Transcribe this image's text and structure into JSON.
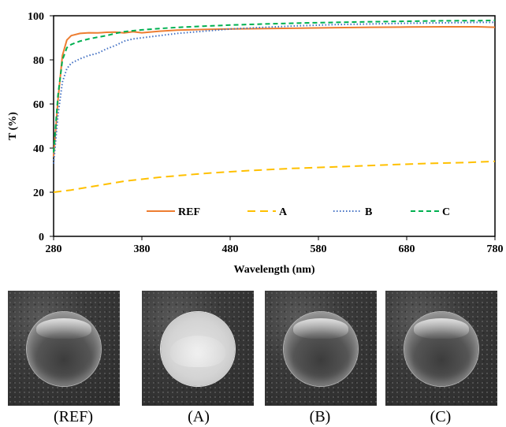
{
  "chart_data": {
    "type": "line",
    "title": "",
    "xlabel": "Wavelength (nm)",
    "ylabel": "T (%)",
    "xlim": [
      280,
      780
    ],
    "ylim": [
      0,
      100
    ],
    "xticks": [
      280,
      380,
      480,
      580,
      680,
      780
    ],
    "yticks": [
      0,
      20,
      40,
      60,
      80,
      100
    ],
    "grid": false,
    "legend": "bottom, inside plot, single row",
    "series": [
      {
        "name": "REF",
        "color": "#ed7d31",
        "dash": "solid",
        "x": [
          280,
          285,
          290,
          295,
          300,
          310,
          320,
          330,
          340,
          350,
          360,
          370,
          380,
          400,
          420,
          450,
          480,
          520,
          560,
          600,
          640,
          680,
          720,
          760,
          780
        ],
        "y": [
          36,
          62,
          82,
          89,
          91,
          92,
          92.3,
          92.2,
          92.5,
          92.6,
          92.2,
          92.8,
          92.3,
          93,
          93.5,
          93.8,
          94,
          94.2,
          94.4,
          94.6,
          94.8,
          94.9,
          95,
          95,
          94.8
        ]
      },
      {
        "name": "A",
        "color": "#ffc000",
        "dash": "long-dash",
        "x": [
          280,
          300,
          330,
          360,
          400,
          450,
          500,
          550,
          600,
          650,
          700,
          750,
          780
        ],
        "y": [
          20,
          21,
          23,
          25,
          26.8,
          28.5,
          29.8,
          30.8,
          31.5,
          32.3,
          33,
          33.5,
          34
        ]
      },
      {
        "name": "B",
        "color": "#4472c4",
        "dash": "dotted",
        "x": [
          280,
          285,
          290,
          295,
          300,
          310,
          320,
          330,
          340,
          350,
          360,
          370,
          380,
          400,
          420,
          450,
          480,
          520,
          560,
          600,
          640,
          680,
          720,
          760,
          780
        ],
        "y": [
          33,
          55,
          70,
          76,
          78.5,
          80.5,
          82,
          83,
          85,
          86.5,
          88.5,
          89.5,
          90,
          91,
          92,
          93,
          94,
          94.8,
          95.5,
          96,
          96.3,
          96.6,
          96.8,
          97,
          97
        ]
      },
      {
        "name": "C",
        "color": "#00b050",
        "dash": "dashed",
        "x": [
          280,
          285,
          290,
          295,
          300,
          310,
          320,
          330,
          340,
          350,
          360,
          370,
          380,
          400,
          420,
          450,
          480,
          520,
          560,
          600,
          640,
          680,
          720,
          760,
          780
        ],
        "y": [
          38,
          64,
          80,
          85.5,
          87,
          88.5,
          89.5,
          90.3,
          91,
          92,
          92.8,
          93.2,
          93.6,
          94.2,
          94.7,
          95.3,
          95.8,
          96.3,
          96.7,
          97,
          97.3,
          97.5,
          97.7,
          97.8,
          97.9
        ]
      }
    ]
  },
  "photos": [
    {
      "caption": "(REF)",
      "appearance": "clear"
    },
    {
      "caption": "(A)",
      "appearance": "frosted"
    },
    {
      "caption": "(B)",
      "appearance": "clear"
    },
    {
      "caption": "(C)",
      "appearance": "clear"
    }
  ]
}
